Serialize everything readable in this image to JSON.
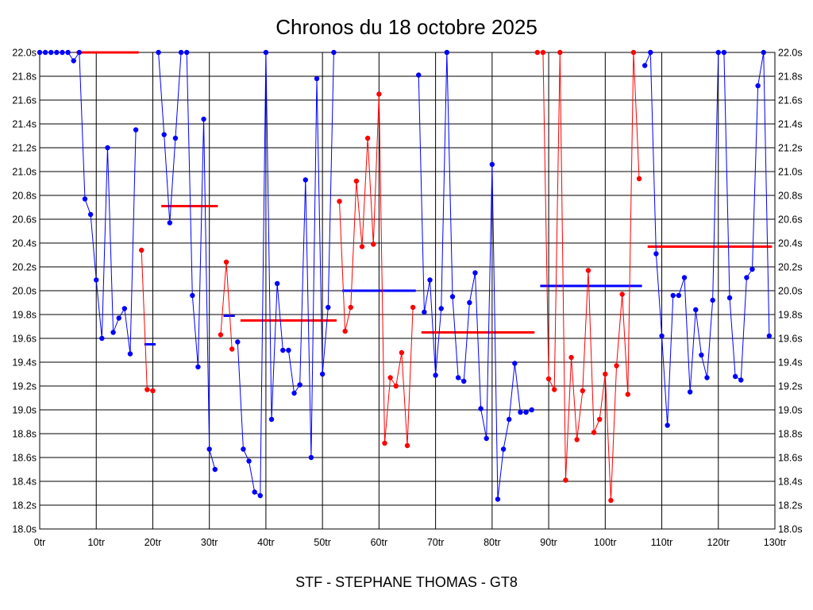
{
  "chart_data": {
    "type": "line",
    "title": "Chronos du 18 octobre 2025",
    "xlabel": "STF - STEPHANE THOMAS - GT8",
    "ylabel": "",
    "xlim": [
      0,
      130
    ],
    "ylim": [
      18.0,
      22.0
    ],
    "x_ticks": [
      "0tr",
      "10tr",
      "20tr",
      "30tr",
      "40tr",
      "50tr",
      "60tr",
      "70tr",
      "80tr",
      "90tr",
      "100tr",
      "110tr",
      "120tr",
      "130tr"
    ],
    "y_ticks": [
      "18.0s",
      "18.2s",
      "18.4s",
      "18.6s",
      "18.8s",
      "19.0s",
      "19.2s",
      "19.4s",
      "19.6s",
      "19.8s",
      "20.0s",
      "20.2s",
      "20.4s",
      "20.6s",
      "20.8s",
      "21.0s",
      "21.2s",
      "21.4s",
      "21.6s",
      "21.8s",
      "22.0s"
    ],
    "grid": true,
    "colors": {
      "blue": "#0000ff",
      "red": "#ff0000"
    },
    "series": [
      {
        "color": "blue",
        "points": [
          [
            0,
            22.0
          ],
          [
            1,
            22.0
          ],
          [
            2,
            22.0
          ],
          [
            3,
            22.0
          ],
          [
            4,
            22.0
          ],
          [
            5,
            22.0
          ],
          [
            6,
            21.93
          ],
          [
            7,
            22.0
          ],
          [
            8,
            20.77
          ],
          [
            9,
            20.64
          ],
          [
            10,
            20.09
          ],
          [
            11,
            19.6
          ],
          [
            12,
            21.2
          ],
          [
            13,
            19.65
          ],
          [
            14,
            19.77
          ],
          [
            15,
            19.85
          ],
          [
            16,
            19.47
          ],
          [
            17,
            21.35
          ]
        ]
      },
      {
        "color": "red",
        "points": [
          [
            18,
            20.34
          ],
          [
            19,
            19.17
          ],
          [
            20,
            19.16
          ]
        ]
      },
      {
        "color": "blue",
        "points": [
          [
            21,
            22.0
          ],
          [
            22,
            21.31
          ],
          [
            23,
            20.57
          ],
          [
            24,
            21.28
          ],
          [
            25,
            22.0
          ],
          [
            26,
            22.0
          ],
          [
            27,
            19.96
          ],
          [
            28,
            19.36
          ],
          [
            29,
            21.44
          ],
          [
            30,
            18.67
          ],
          [
            31,
            18.5
          ]
        ]
      },
      {
        "color": "red",
        "points": [
          [
            32,
            19.63
          ],
          [
            33,
            20.24
          ],
          [
            34,
            19.51
          ]
        ]
      },
      {
        "color": "blue",
        "points": [
          [
            35,
            19.57
          ],
          [
            36,
            18.67
          ],
          [
            37,
            18.57
          ],
          [
            38,
            18.31
          ],
          [
            39,
            18.28
          ],
          [
            40,
            22.0
          ],
          [
            41,
            18.92
          ],
          [
            42,
            20.06
          ],
          [
            43,
            19.5
          ],
          [
            44,
            19.5
          ],
          [
            45,
            19.14
          ],
          [
            46,
            19.21
          ],
          [
            47,
            20.93
          ],
          [
            48,
            18.6
          ],
          [
            49,
            21.78
          ],
          [
            50,
            19.3
          ],
          [
            51,
            19.86
          ],
          [
            52,
            22.0
          ]
        ]
      },
      {
        "color": "red",
        "points": [
          [
            53,
            20.75
          ],
          [
            54,
            19.66
          ],
          [
            55,
            19.86
          ],
          [
            56,
            20.92
          ],
          [
            57,
            20.37
          ],
          [
            58,
            21.28
          ],
          [
            59,
            20.39
          ],
          [
            60,
            21.65
          ],
          [
            61,
            18.72
          ],
          [
            62,
            19.27
          ],
          [
            63,
            19.2
          ],
          [
            64,
            19.48
          ],
          [
            65,
            18.7
          ],
          [
            66,
            19.86
          ]
        ]
      },
      {
        "color": "blue",
        "points": [
          [
            67,
            21.81
          ],
          [
            68,
            19.82
          ],
          [
            69,
            20.09
          ],
          [
            70,
            19.29
          ],
          [
            71,
            19.85
          ],
          [
            72,
            22.0
          ],
          [
            73,
            19.95
          ],
          [
            74,
            19.27
          ],
          [
            75,
            19.24
          ],
          [
            76,
            19.9
          ],
          [
            77,
            20.15
          ],
          [
            78,
            19.01
          ],
          [
            79,
            18.76
          ],
          [
            80,
            21.06
          ],
          [
            81,
            18.25
          ],
          [
            82,
            18.67
          ],
          [
            83,
            18.92
          ],
          [
            84,
            19.39
          ],
          [
            85,
            18.98
          ],
          [
            86,
            18.98
          ],
          [
            87,
            19.0
          ]
        ]
      },
      {
        "color": "red",
        "points": [
          [
            88,
            22.0
          ],
          [
            89,
            22.0
          ],
          [
            90,
            19.26
          ],
          [
            91,
            19.17
          ],
          [
            92,
            22.0
          ],
          [
            93,
            18.41
          ],
          [
            94,
            19.44
          ],
          [
            95,
            18.75
          ],
          [
            96,
            19.16
          ],
          [
            97,
            20.17
          ],
          [
            98,
            18.81
          ],
          [
            99,
            18.92
          ],
          [
            100,
            19.3
          ],
          [
            101,
            18.24
          ],
          [
            102,
            19.37
          ],
          [
            103,
            19.97
          ],
          [
            104,
            19.13
          ],
          [
            105,
            22.0
          ],
          [
            106,
            20.94
          ]
        ]
      },
      {
        "color": "blue",
        "points": [
          [
            107,
            21.89
          ],
          [
            108,
            22.0
          ],
          [
            109,
            20.31
          ],
          [
            110,
            19.62
          ],
          [
            111,
            18.87
          ],
          [
            112,
            19.96
          ],
          [
            113,
            19.96
          ],
          [
            114,
            20.11
          ],
          [
            115,
            19.15
          ],
          [
            116,
            19.84
          ],
          [
            117,
            19.46
          ],
          [
            118,
            19.27
          ],
          [
            119,
            19.92
          ],
          [
            120,
            22.0
          ],
          [
            121,
            22.0
          ],
          [
            122,
            19.94
          ],
          [
            123,
            19.28
          ],
          [
            124,
            19.25
          ],
          [
            125,
            20.11
          ],
          [
            126,
            20.18
          ],
          [
            127,
            21.72
          ],
          [
            128,
            22.0
          ],
          [
            129,
            19.62
          ]
        ]
      }
    ],
    "averages": [
      {
        "color": "red",
        "x0": 6.5,
        "x1": 17.5,
        "value": 22.0
      },
      {
        "color": "blue",
        "x0": 18.5,
        "x1": 20.5,
        "value": 19.55
      },
      {
        "color": "red",
        "x0": 21.5,
        "x1": 31.5,
        "value": 20.71
      },
      {
        "color": "blue",
        "x0": 32.5,
        "x1": 34.5,
        "value": 19.79
      },
      {
        "color": "red",
        "x0": 35.5,
        "x1": 52.5,
        "value": 19.75
      },
      {
        "color": "blue",
        "x0": 53.5,
        "x1": 66.5,
        "value": 20.0
      },
      {
        "color": "red",
        "x0": 67.5,
        "x1": 87.5,
        "value": 19.65
      },
      {
        "color": "blue",
        "x0": 88.5,
        "x1": 106.5,
        "value": 20.04
      },
      {
        "color": "red",
        "x0": 107.5,
        "x1": 129.5,
        "value": 20.37
      }
    ]
  }
}
